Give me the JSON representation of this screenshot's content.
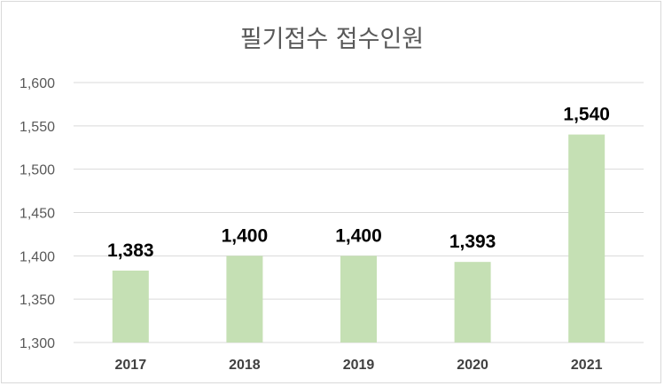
{
  "chart_data": {
    "type": "bar",
    "title": "필기접수 접수인원",
    "categories": [
      "2017",
      "2018",
      "2019",
      "2020",
      "2021"
    ],
    "series": [
      {
        "values": [
          1383,
          1400,
          1400,
          1393,
          1540
        ]
      }
    ],
    "data_labels": [
      "1,383",
      "1,400",
      "1,400",
      "1,393",
      "1,540"
    ],
    "ylim": [
      1300,
      1600
    ],
    "yticks": [
      1300,
      1350,
      1400,
      1450,
      1500,
      1550,
      1600
    ],
    "ytick_labels": [
      "1,300",
      "1,350",
      "1,400",
      "1,450",
      "1,500",
      "1,550",
      "1,600"
    ],
    "grid": true,
    "bar_color": "#c5e0b4",
    "grid_color": "#d9d9d9"
  }
}
